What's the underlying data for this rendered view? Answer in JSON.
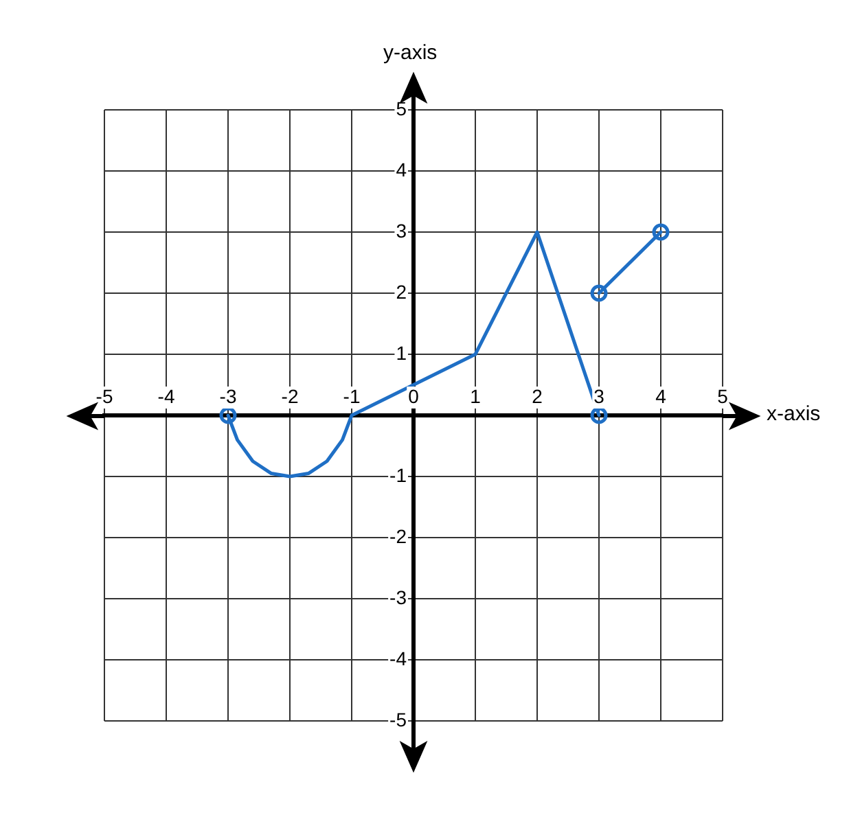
{
  "chart_data": {
    "type": "line",
    "xlabel": "x-axis",
    "ylabel": "y-axis",
    "xlim": [
      -5,
      5
    ],
    "ylim": [
      -5,
      5
    ],
    "xticks": [
      -5,
      -4,
      -3,
      -2,
      -1,
      0,
      1,
      2,
      3,
      4,
      5
    ],
    "yticks": [
      -5,
      -4,
      -3,
      -2,
      -1,
      {
        "value": 0,
        "label": null
      },
      1,
      2,
      3,
      4,
      5
    ],
    "grid": true,
    "series": [
      {
        "color": "#1f6fc5",
        "marker": "none",
        "x": [
          -3,
          -2.85,
          -2.6,
          -2.3,
          -2,
          -1.7,
          -1.4,
          -1.15,
          -1,
          1,
          2,
          3
        ],
        "values": [
          0,
          -0.4,
          -0.75,
          -0.95,
          -1,
          -0.95,
          -0.75,
          -0.4,
          0,
          1,
          3,
          0
        ]
      },
      {
        "color": "#1f6fc5",
        "marker": "none",
        "x": [
          3,
          4
        ],
        "values": [
          2,
          3
        ]
      },
      {
        "type": "scatter",
        "color": "#1f6fc5",
        "marker": "circle",
        "x": [
          -3,
          3,
          3,
          4
        ],
        "values": [
          0,
          0,
          2,
          3
        ]
      }
    ]
  }
}
